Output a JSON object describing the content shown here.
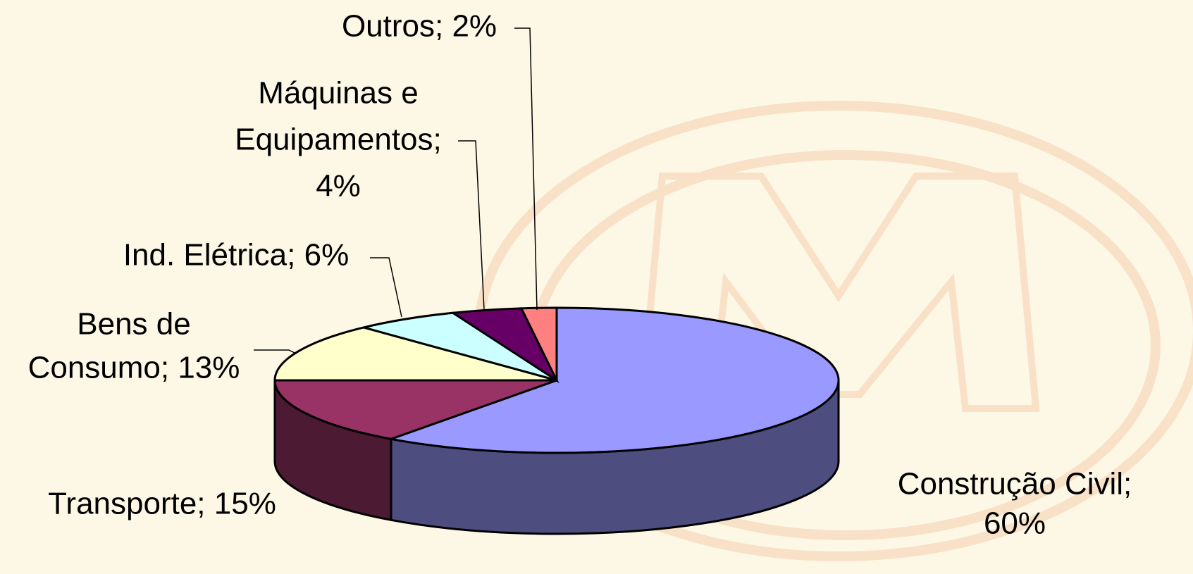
{
  "chart_data": {
    "type": "pie",
    "categories": [
      "Construção Civil",
      "Transporte",
      "Bens de Consumo",
      "Ind. Elétrica",
      "Máquinas e Equipamentos",
      "Outros"
    ],
    "values": [
      60,
      15,
      13,
      6,
      4,
      2
    ],
    "value_labels": [
      [
        "Construção Civil;",
        "60%"
      ],
      [
        "Transporte; 15%"
      ],
      [
        "Bens de",
        "Consumo; 13%"
      ],
      [
        "Ind. Elétrica; 6%"
      ],
      [
        "Máquinas e",
        "Equipamentos;",
        "4%"
      ],
      [
        "Outros; 2%"
      ]
    ],
    "colors": [
      "#9999ff",
      "#993366",
      "#ffffcc",
      "#ccffff",
      "#660066",
      "#ff8080"
    ]
  }
}
